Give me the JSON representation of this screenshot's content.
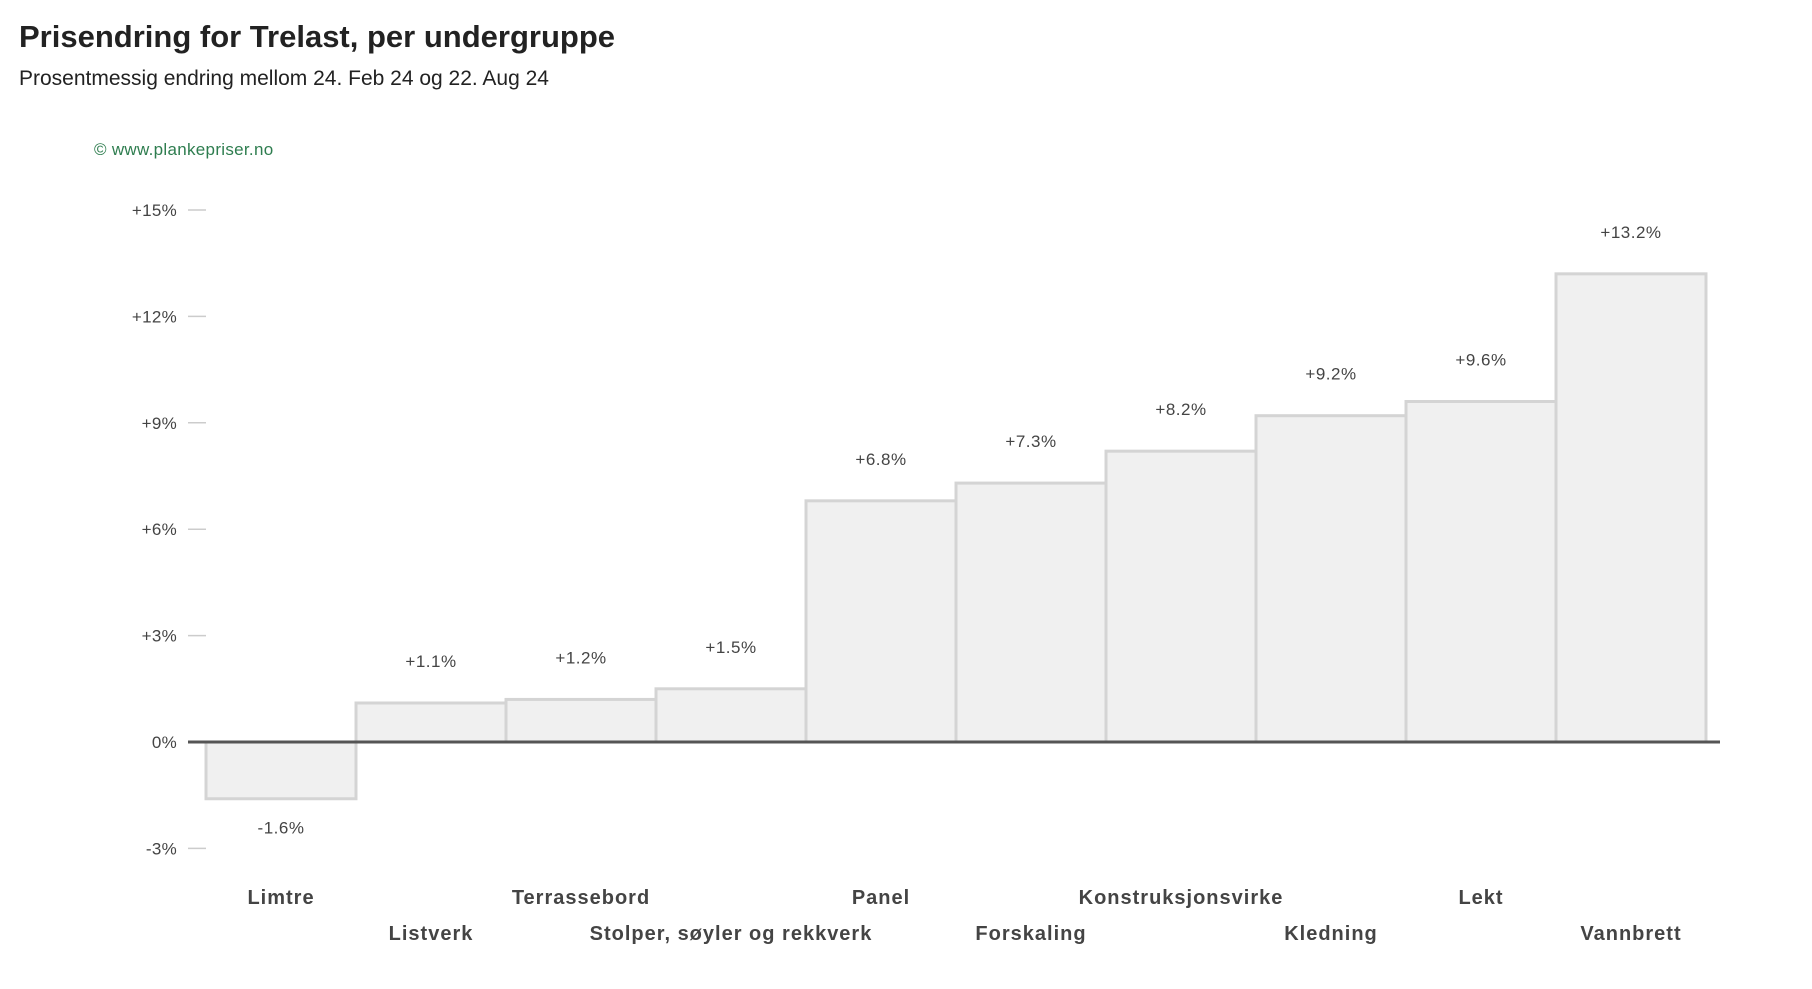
{
  "header": {
    "title": "Prisendring for Trelast, per undergruppe",
    "subtitle": "Prosentmessig endring mellom 24. Feb 24 og 22. Aug 24"
  },
  "credit": "© www.plankepriser.no",
  "colors": {
    "bar_fill": "#f0f0f0",
    "bar_stroke": "#d4d4d4",
    "zero_line": "#555555",
    "credit": "#2e7d4f"
  },
  "chart_data": {
    "type": "bar",
    "title": "Prisendring for Trelast, per undergruppe",
    "subtitle": "Prosentmessig endring mellom 24. Feb 24 og 22. Aug 24",
    "categories": [
      "Limtre",
      "Listverk",
      "Terrassebord",
      "Stolper, søyler og rekkverk",
      "Panel",
      "Forskaling",
      "Konstruksjonsvirke",
      "Kledning",
      "Lekt",
      "Vannbrett"
    ],
    "values": [
      -1.6,
      1.1,
      1.2,
      1.5,
      6.8,
      7.3,
      8.2,
      9.2,
      9.6,
      13.2
    ],
    "value_labels": [
      "-1.6%",
      "+1.1%",
      "+1.2%",
      "+1.5%",
      "+6.8%",
      "+7.3%",
      "+8.2%",
      "+9.2%",
      "+9.6%",
      "+13.2%"
    ],
    "yticks": [
      -3,
      0,
      3,
      6,
      9,
      12,
      15
    ],
    "ytick_labels": [
      "-3%",
      "0%",
      "+3%",
      "+6%",
      "+9%",
      "+12%",
      "+15%"
    ],
    "ylim": [
      -3,
      15
    ],
    "xlabel": "",
    "ylabel": "",
    "grid": false,
    "legend": "none"
  }
}
